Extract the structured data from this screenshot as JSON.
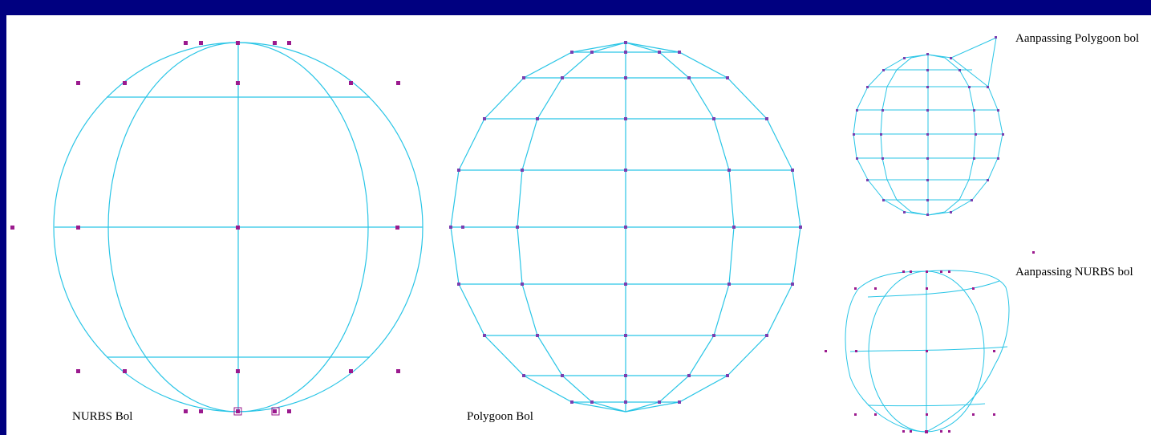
{
  "labels": {
    "nurbs_sphere": "NURBS Bol",
    "polygon_sphere": "Polygoon Bol",
    "edited_polygon": "Aanpassing Polygoon bol",
    "edited_nurbs": "Aanpassing NURBS bol"
  },
  "colors": {
    "background": "#000080",
    "canvas": "#ffffff",
    "wireframe": "#29c5e6",
    "control_points": "#9b1a8e"
  }
}
